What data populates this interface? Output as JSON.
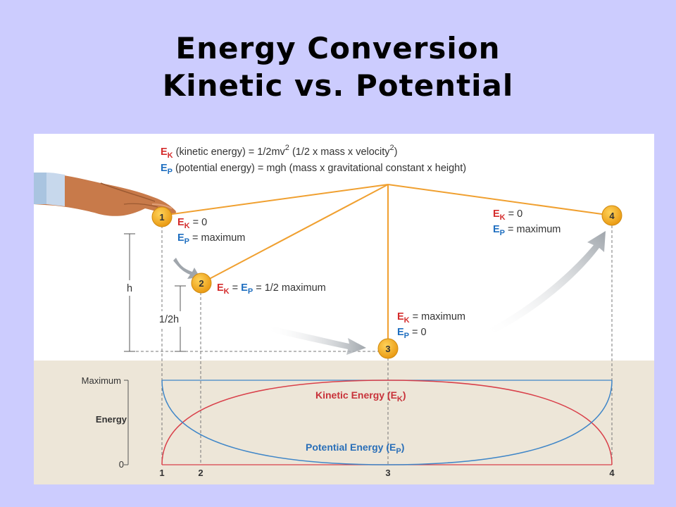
{
  "slide": {
    "title_line1": "Energy Conversion",
    "title_line2": "Kinetic vs. Potential"
  },
  "legend": {
    "ek_symbol": "E",
    "ek_sub": "K",
    "ek_text": " (kinetic energy) = 1/2mv",
    "ek_sup": "2",
    "ek_text2": " (1/2 x mass x velocity",
    "ek_sup2": "2",
    "ek_close": ")",
    "ep_symbol": "E",
    "ep_sub": "P",
    "ep_text": " (potential energy) = mgh (mass x gravitational constant x height)"
  },
  "positions": {
    "p1": {
      "number": "1",
      "ek": "= 0",
      "ep": "= maximum"
    },
    "p2": {
      "number": "2",
      "text": "= 1/2 maximum"
    },
    "p3": {
      "number": "3",
      "ek": "= maximum",
      "ep": "= 0"
    },
    "p4": {
      "number": "4",
      "ek": "= 0",
      "ep": "= maximum"
    }
  },
  "heights": {
    "h": "h",
    "half_h": "1/2h"
  },
  "graph": {
    "y_max_label": "Maximum",
    "y_axis_label": "Energy",
    "y_zero_label": "0",
    "x_ticks": [
      "1",
      "2",
      "3",
      "4"
    ],
    "kinetic_label": "Kinetic Energy (E",
    "kinetic_sub": "K",
    "potential_label": "Potential Energy (E",
    "potential_sub": "P",
    "close_paren": ")"
  },
  "colors": {
    "background": "#ccccfe",
    "ball": "#f0a81e",
    "string": "#f0a030",
    "kinetic": "#d9404a",
    "potential": "#3f86c8",
    "graph_bg": "#ede6d8"
  }
}
